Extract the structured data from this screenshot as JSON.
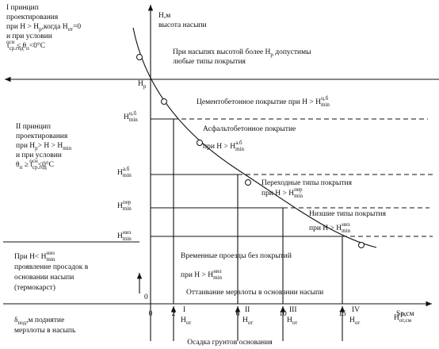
{
  "axis": {
    "y_title": "H,м",
    "y_subtitle": "высота насыпи",
    "x_unit": "Sp,см",
    "x_title": "Осадка грунтов основания",
    "origin": "0",
    "x_ticks": [
      "0",
      "2",
      "6",
      "10",
      "15"
    ]
  },
  "texts": [
    {
      "id": "p1",
      "lines": [
        [
          {
            "text": "I принцип"
          }
        ],
        [
          {
            "text": "проектирования"
          }
        ],
        [
          {
            "text": "при H > H"
          },
          {
            "text": "р",
            "pos": "sub"
          },
          {
            "text": ",когда H"
          },
          {
            "text": "от",
            "pos": "sub"
          },
          {
            "text": "=0"
          }
        ],
        [
          {
            "text": "и при условии"
          }
        ],
        [
          {
            "text": "t"
          },
          {
            "text": "ср.год",
            "pos": "sub"
          },
          {
            "text": "осн",
            "pos": "sup"
          },
          {
            "text": " ≤ θ"
          },
          {
            "text": "п",
            "pos": "sub"
          },
          {
            "text": "<0°С"
          }
        ]
      ]
    },
    {
      "id": "hr",
      "lines": [
        [
          {
            "text": "H"
          },
          {
            "text": "р",
            "pos": "sub"
          }
        ]
      ]
    },
    {
      "id": "top",
      "lines": [
        [
          {
            "text": "При насыпях высотой более H"
          },
          {
            "text": "р",
            "pos": "sub"
          },
          {
            "text": " допустимы"
          }
        ],
        [
          {
            "text": "любые типы покрытия"
          }
        ]
      ]
    },
    {
      "id": "cb",
      "lines": [
        [
          {
            "text": "Цементобетонное покрытие при H > H"
          },
          {
            "text": "min",
            "pos": "sub"
          },
          {
            "text": "ц.б",
            "pos": "sup"
          }
        ]
      ]
    },
    {
      "id": "lcb",
      "lines": [
        [
          {
            "text": "H"
          },
          {
            "text": "min",
            "pos": "sub"
          },
          {
            "text": "ц.б",
            "pos": "sup"
          }
        ]
      ]
    },
    {
      "id": "ab",
      "lines": [
        [
          {
            "text": "Асфальтобетонное покрытие"
          }
        ],
        [
          {
            "text": "при H > H"
          },
          {
            "text": "min",
            "pos": "sub"
          },
          {
            "text": "а.б",
            "pos": "sup"
          }
        ]
      ]
    },
    {
      "id": "p2",
      "lines": [
        [
          {
            "text": "II принцип"
          }
        ],
        [
          {
            "text": "проектирования"
          }
        ],
        [
          {
            "text": "при H"
          },
          {
            "text": "р",
            "pos": "sub"
          },
          {
            "text": "> H > H"
          },
          {
            "text": "min",
            "pos": "sub"
          }
        ],
        [
          {
            "text": "и при условии"
          }
        ],
        [
          {
            "text": "θ"
          },
          {
            "text": "п",
            "pos": "sub"
          },
          {
            "text": " ≥ t"
          },
          {
            "text": "ср.год",
            "pos": "sub"
          },
          {
            "text": "осн",
            "pos": "sup"
          },
          {
            "text": "<0°С"
          }
        ]
      ]
    },
    {
      "id": "lab",
      "lines": [
        [
          {
            "text": "H"
          },
          {
            "text": "min",
            "pos": "sub"
          },
          {
            "text": "а.б",
            "pos": "sup"
          }
        ]
      ]
    },
    {
      "id": "per",
      "lines": [
        [
          {
            "text": "Переходные типы покрытия"
          }
        ],
        [
          {
            "text": "при H > H"
          },
          {
            "text": "min",
            "pos": "sub"
          },
          {
            "text": "пер",
            "pos": "sup"
          }
        ]
      ]
    },
    {
      "id": "lper",
      "lines": [
        [
          {
            "text": "H"
          },
          {
            "text": "min",
            "pos": "sub"
          },
          {
            "text": "пер",
            "pos": "sup"
          }
        ]
      ]
    },
    {
      "id": "niz",
      "lines": [
        [
          {
            "text": "Низшие типы покрытия"
          }
        ],
        [
          {
            "text": "при H > H"
          },
          {
            "text": "min",
            "pos": "sub"
          },
          {
            "text": "низ",
            "pos": "sup"
          }
        ]
      ]
    },
    {
      "id": "lniz",
      "lines": [
        [
          {
            "text": "H"
          },
          {
            "text": "min",
            "pos": "sub"
          },
          {
            "text": "низ",
            "pos": "sup"
          }
        ]
      ]
    },
    {
      "id": "p3",
      "lines": [
        [
          {
            "text": "При H< H"
          },
          {
            "text": "min",
            "pos": "sub"
          },
          {
            "text": "низ",
            "pos": "sup"
          }
        ],
        [
          {
            "text": "проявление просадок в"
          }
        ],
        [
          {
            "text": "основании насыпи"
          }
        ],
        [
          {
            "text": "(термокарст)"
          }
        ]
      ]
    },
    {
      "id": "vr",
      "lines": [
        [
          {
            "text": "Временные проезды без покрытий"
          }
        ],
        [
          {
            "text": "при H > H"
          },
          {
            "text": "min",
            "pos": "sub"
          },
          {
            "text": "низ",
            "pos": "sup"
          }
        ]
      ]
    },
    {
      "id": "ott",
      "lines": [
        [
          {
            "text": "Оттаивание мерзлоты в основании насыпи"
          }
        ]
      ]
    },
    {
      "id": "del",
      "lines": [
        [
          {
            "text": "δ"
          },
          {
            "text": "под",
            "pos": "sub"
          },
          {
            "text": ",м поднятие"
          }
        ],
        [
          {
            "text": "мерзлоты в насыпь"
          }
        ]
      ]
    },
    {
      "id": "h1",
      "lines": [
        [
          {
            "text": "I"
          }
        ],
        [
          {
            "text": "H"
          },
          {
            "text": "от",
            "pos": "sub"
          }
        ]
      ]
    },
    {
      "id": "h2",
      "lines": [
        [
          {
            "text": "II"
          }
        ],
        [
          {
            "text": "H"
          },
          {
            "text": "от",
            "pos": "sub"
          }
        ]
      ]
    },
    {
      "id": "h3",
      "lines": [
        [
          {
            "text": "III"
          }
        ],
        [
          {
            "text": "H"
          },
          {
            "text": "от",
            "pos": "sub"
          }
        ]
      ]
    },
    {
      "id": "h4",
      "lines": [
        [
          {
            "text": "IV"
          }
        ],
        [
          {
            "text": "H"
          },
          {
            "text": "от",
            "pos": "sub"
          }
        ]
      ]
    },
    {
      "id": "hpc",
      "lines": [
        [
          {
            "text": "пс",
            "pos": "sup"
          }
        ],
        [
          {
            "text": "H"
          },
          {
            "text": "от,см",
            "pos": "sub"
          }
        ]
      ]
    }
  ]
}
